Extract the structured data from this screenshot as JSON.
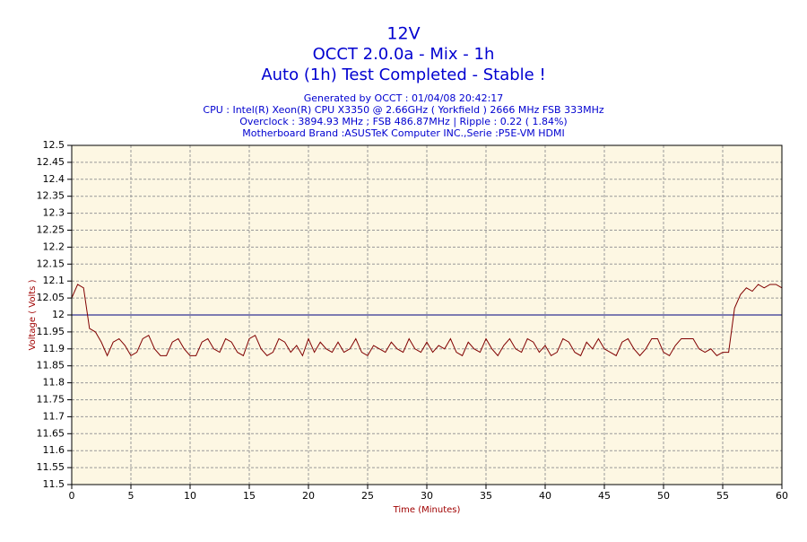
{
  "chart_data": {
    "type": "line",
    "title": "12V",
    "subtitle": [
      "OCCT 2.0.0a - Mix - 1h",
      "Auto (1h) Test Completed - Stable !"
    ],
    "info": [
      "Generated by OCCT : 01/04/08 20:42:17",
      "CPU : Intel(R) Xeon(R) CPU X3350 @ 2.66GHz ( Yorkfield ) 2666 MHz FSB 333MHz",
      "Overclock : 3894.93 MHz ; FSB 486.87MHz | Ripple : 0.22 ( 1.84%)",
      "Motherboard Brand :ASUSTeK Computer INC.,Serie :P5E-VM HDMI"
    ],
    "xlabel": "Time (Minutes)",
    "ylabel": "Voltage ( Volts )",
    "x": [
      0,
      0.5,
      1,
      1.5,
      2,
      2.5,
      3,
      3.5,
      4,
      4.5,
      5,
      5.5,
      6,
      6.5,
      7,
      7.5,
      8,
      8.5,
      9,
      9.5,
      10,
      10.5,
      11,
      11.5,
      12,
      12.5,
      13,
      13.5,
      14,
      14.5,
      15,
      15.5,
      16,
      16.5,
      17,
      17.5,
      18,
      18.5,
      19,
      19.5,
      20,
      20.5,
      21,
      21.5,
      22,
      22.5,
      23,
      23.5,
      24,
      24.5,
      25,
      25.5,
      26,
      26.5,
      27,
      27.5,
      28,
      28.5,
      29,
      29.5,
      30,
      30.5,
      31,
      31.5,
      32,
      32.5,
      33,
      33.5,
      34,
      34.5,
      35,
      35.5,
      36,
      36.5,
      37,
      37.5,
      38,
      38.5,
      39,
      39.5,
      40,
      40.5,
      41,
      41.5,
      42,
      42.5,
      43,
      43.5,
      44,
      44.5,
      45,
      45.5,
      46,
      46.5,
      47,
      47.5,
      48,
      48.5,
      49,
      49.5,
      50,
      50.5,
      51,
      51.5,
      52,
      52.5,
      53,
      53.5,
      54,
      54.5,
      55,
      55.5,
      56,
      56.5,
      57,
      57.5,
      58,
      58.5,
      59,
      59.5,
      60
    ],
    "series": [
      {
        "color": "#800000",
        "values": [
          12.05,
          12.09,
          12.08,
          11.96,
          11.95,
          11.92,
          11.88,
          11.92,
          11.93,
          11.91,
          11.88,
          11.89,
          11.93,
          11.94,
          11.9,
          11.88,
          11.88,
          11.92,
          11.93,
          11.9,
          11.88,
          11.88,
          11.92,
          11.93,
          11.9,
          11.89,
          11.93,
          11.92,
          11.89,
          11.88,
          11.93,
          11.94,
          11.9,
          11.88,
          11.89,
          11.93,
          11.92,
          11.89,
          11.91,
          11.88,
          11.93,
          11.89,
          11.92,
          11.9,
          11.89,
          11.92,
          11.89,
          11.9,
          11.93,
          11.89,
          11.88,
          11.91,
          11.9,
          11.89,
          11.92,
          11.9,
          11.89,
          11.93,
          11.9,
          11.89,
          11.92,
          11.89,
          11.91,
          11.9,
          11.93,
          11.89,
          11.88,
          11.92,
          11.9,
          11.89,
          11.93,
          11.9,
          11.88,
          11.91,
          11.93,
          11.9,
          11.89,
          11.93,
          11.92,
          11.89,
          11.91,
          11.88,
          11.89,
          11.93,
          11.92,
          11.89,
          11.88,
          11.92,
          11.9,
          11.93,
          11.9,
          11.89,
          11.88,
          11.92,
          11.93,
          11.9,
          11.88,
          11.9,
          11.93,
          11.93,
          11.89,
          11.88,
          11.91,
          11.93,
          11.93,
          11.93,
          11.9,
          11.89,
          11.9,
          11.88,
          11.89,
          11.89,
          12.02,
          12.06,
          12.08,
          12.07,
          12.09,
          12.08,
          12.09,
          12.09,
          12.08
        ]
      }
    ],
    "reference_line": {
      "value": 12,
      "color": "#000080"
    },
    "xlim": [
      0,
      60
    ],
    "xticks": [
      0,
      5,
      10,
      15,
      20,
      25,
      30,
      35,
      40,
      45,
      50,
      55,
      60
    ],
    "ylim": [
      11.5,
      12.5
    ],
    "yticks": [
      11.5,
      11.55,
      11.6,
      11.65,
      11.7,
      11.75,
      11.8,
      11.85,
      11.9,
      11.95,
      12,
      12.05,
      12.1,
      12.15,
      12.2,
      12.25,
      12.3,
      12.35,
      12.4,
      12.45,
      12.5
    ],
    "grid": true
  }
}
